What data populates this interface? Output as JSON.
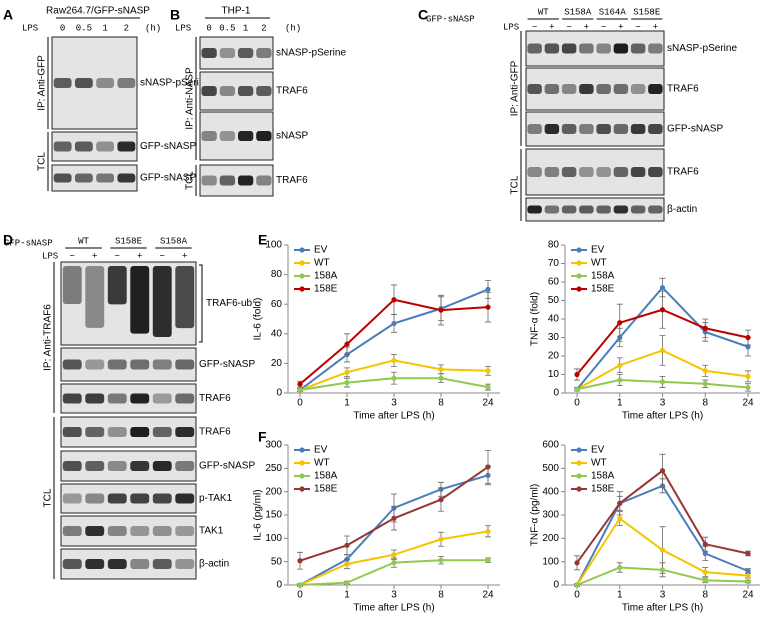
{
  "panels": {
    "A": {
      "letter": "A",
      "title": "Raw264.7/GFP-sNASP",
      "treatment": "LPS",
      "lanes": [
        "0",
        "0.5",
        "1",
        "2"
      ],
      "unit": "(h)",
      "groups": [
        "IP: Anti-GFP",
        "TCL"
      ],
      "blots": [
        "sNASP-pSerine",
        "GFP-sNASP",
        "GFP-sNASP"
      ]
    },
    "B": {
      "letter": "B",
      "title": "THP-1",
      "treatment": "LPS",
      "lanes": [
        "0",
        "0.5",
        "1",
        "2"
      ],
      "unit": "(h)",
      "groups": [
        "IP: Anti-NASP",
        "TCL"
      ],
      "blots": [
        "sNASP-pSerine",
        "TRAF6",
        "sNASP",
        "TRAF6"
      ]
    },
    "C": {
      "letter": "C",
      "construct_label": "GFP-sNASP",
      "constructs": [
        "WT",
        "S158A",
        "S164A",
        "S158E"
      ],
      "treatment": "LPS",
      "lanes": [
        "−",
        "+",
        "−",
        "+",
        "−",
        "+",
        "−",
        "+"
      ],
      "groups": [
        "IP: Anti-GFP",
        "TCL"
      ],
      "blots": [
        "sNASP-pSerine",
        "TRAF6",
        "GFP-sNASP",
        "TRAF6",
        "β-actin"
      ]
    },
    "D": {
      "letter": "D",
      "construct_label": "GFP-sNASP",
      "constructs": [
        "WT",
        "S158E",
        "S158A"
      ],
      "treatment": "LPS",
      "lanes": [
        "−",
        "+",
        "−",
        "+",
        "−",
        "+"
      ],
      "groups": [
        "IP: Anti-TRAF6",
        "TCL"
      ],
      "blots": [
        "TRAF6-ub",
        "GFP-sNASP",
        "TRAF6",
        "TRAF6",
        "GFP-sNASP",
        "p-TAK1",
        "TAK1",
        "β-actin"
      ]
    },
    "E": {
      "letter": "E"
    },
    "F": {
      "letter": "F"
    }
  },
  "chart_data": [
    {
      "type": "line",
      "y_label": "IL-6 (fold)",
      "x_label": "Time after LPS (h)",
      "categories": [
        "0",
        "1",
        "3",
        "8",
        "24"
      ],
      "ylim": [
        0,
        100
      ],
      "yticks": [
        0,
        20,
        40,
        60,
        80,
        100
      ],
      "grid": false,
      "legend": "upper left",
      "series": [
        {
          "name": "EV",
          "color": "#4a7ebb",
          "values": [
            2,
            26,
            47,
            57,
            70
          ],
          "errors": [
            1,
            5,
            6,
            8,
            6
          ]
        },
        {
          "name": "WT",
          "color": "#f5c400",
          "values": [
            2,
            14,
            22,
            16,
            15
          ],
          "errors": [
            1,
            3,
            4,
            3,
            3
          ]
        },
        {
          "name": "158A",
          "color": "#8fc94f",
          "values": [
            2,
            7,
            10,
            10,
            4
          ],
          "errors": [
            1,
            3,
            4,
            3,
            2
          ]
        },
        {
          "name": "158E",
          "color": "#c00000",
          "values": [
            6,
            33,
            63,
            56,
            58
          ],
          "errors": [
            2,
            7,
            10,
            10,
            10
          ]
        }
      ]
    },
    {
      "type": "line",
      "y_label": "TNF-α (fold)",
      "x_label": "Time after LPS (h)",
      "categories": [
        "0",
        "1",
        "3",
        "8",
        "24"
      ],
      "ylim": [
        0,
        80
      ],
      "yticks": [
        0,
        10,
        20,
        30,
        40,
        50,
        60,
        70,
        80
      ],
      "grid": false,
      "legend": "upper left",
      "series": [
        {
          "name": "EV",
          "color": "#4a7ebb",
          "values": [
            2,
            30,
            57,
            33,
            25
          ],
          "errors": [
            1,
            5,
            5,
            5,
            5
          ]
        },
        {
          "name": "WT",
          "color": "#f5c400",
          "values": [
            2,
            15,
            23,
            12,
            9
          ],
          "errors": [
            1,
            4,
            8,
            3,
            3
          ]
        },
        {
          "name": "158A",
          "color": "#8fc94f",
          "values": [
            2,
            7,
            6,
            5,
            3
          ],
          "errors": [
            1,
            3,
            3,
            2,
            2
          ]
        },
        {
          "name": "158E",
          "color": "#c00000",
          "values": [
            10,
            38,
            45,
            35,
            30
          ],
          "errors": [
            3,
            10,
            10,
            5,
            4
          ]
        }
      ]
    },
    {
      "type": "line",
      "y_label": "IL-6 (pg/ml)",
      "x_label": "Time after LPS (h)",
      "categories": [
        "0",
        "1",
        "3",
        "8",
        "24"
      ],
      "ylim": [
        0,
        300
      ],
      "yticks": [
        0,
        50,
        100,
        150,
        200,
        250,
        300
      ],
      "grid": false,
      "legend": "upper left",
      "series": [
        {
          "name": "EV",
          "color": "#4a7ebb",
          "values": [
            0,
            55,
            165,
            205,
            235
          ],
          "errors": [
            3,
            10,
            30,
            15,
            20
          ]
        },
        {
          "name": "WT",
          "color": "#f5c400",
          "values": [
            0,
            45,
            65,
            98,
            115
          ],
          "errors": [
            3,
            10,
            10,
            15,
            12
          ]
        },
        {
          "name": "158A",
          "color": "#8fc94f",
          "values": [
            0,
            5,
            48,
            53,
            53
          ],
          "errors": [
            2,
            3,
            10,
            8,
            5
          ]
        },
        {
          "name": "158E",
          "color": "#953735",
          "values": [
            52,
            85,
            143,
            183,
            253
          ],
          "errors": [
            18,
            20,
            25,
            25,
            35
          ]
        }
      ]
    },
    {
      "type": "line",
      "y_label": "TNF-α (pg/ml)",
      "x_label": "Time after LPS (h)",
      "categories": [
        "0",
        "1",
        "3",
        "8",
        "24"
      ],
      "ylim": [
        0,
        600
      ],
      "yticks": [
        0,
        100,
        200,
        300,
        400,
        500,
        600
      ],
      "grid": false,
      "legend": "upper left",
      "series": [
        {
          "name": "EV",
          "color": "#4a7ebb",
          "values": [
            0,
            350,
            425,
            135,
            60
          ],
          "errors": [
            5,
            30,
            30,
            30,
            10
          ]
        },
        {
          "name": "WT",
          "color": "#f5c400",
          "values": [
            0,
            285,
            150,
            55,
            40
          ],
          "errors": [
            5,
            30,
            100,
            20,
            10
          ]
        },
        {
          "name": "158A",
          "color": "#8fc94f",
          "values": [
            0,
            75,
            65,
            20,
            15
          ],
          "errors": [
            5,
            20,
            30,
            10,
            5
          ]
        },
        {
          "name": "158E",
          "color": "#953735",
          "values": [
            95,
            350,
            490,
            175,
            135
          ],
          "errors": [
            30,
            50,
            70,
            30,
            10
          ]
        }
      ]
    }
  ]
}
